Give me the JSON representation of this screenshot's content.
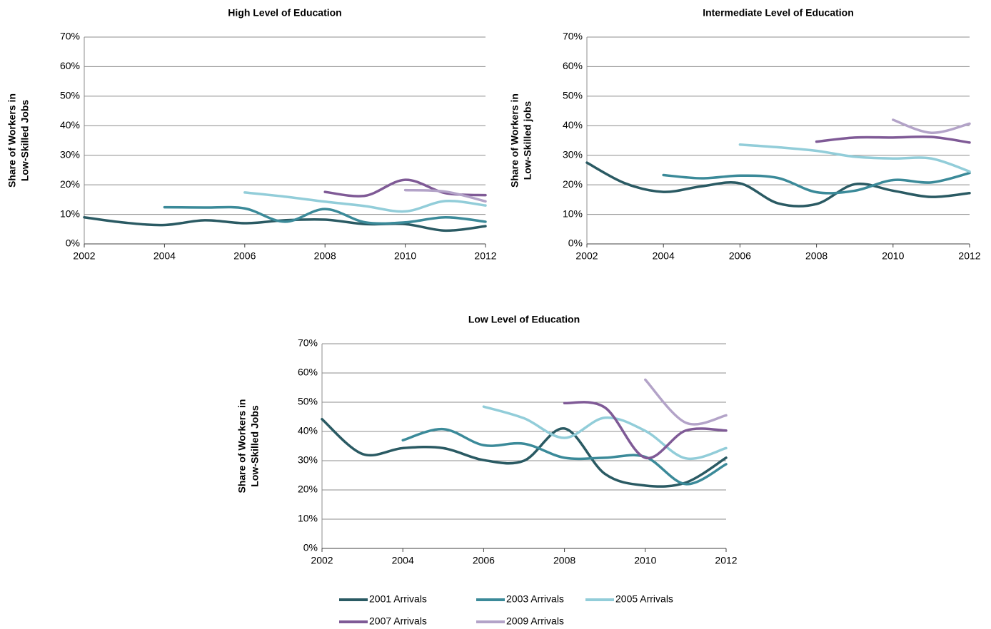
{
  "chart_data": [
    {
      "type": "line",
      "title": "High Level of Education",
      "ylabel": [
        "Share of Workers in",
        "Low-Skilled Jobs"
      ],
      "x": [
        2002,
        2003,
        2004,
        2005,
        2006,
        2007,
        2008,
        2009,
        2010,
        2011,
        2012
      ],
      "xlim": [
        2002,
        2012
      ],
      "xticks": [
        2002,
        2004,
        2006,
        2008,
        2010,
        2012
      ],
      "ylim": [
        0,
        70
      ],
      "yticks": [
        {
          "value": 0,
          "label": "0%"
        },
        {
          "value": 10,
          "label": "10%"
        },
        {
          "value": 20,
          "label": "20%"
        },
        {
          "value": 30,
          "label": "30%"
        },
        {
          "value": 40,
          "label": "40%"
        },
        {
          "value": 50,
          "label": "50%"
        },
        {
          "value": 60,
          "label": "60%"
        },
        {
          "value": 70,
          "label": "70%"
        }
      ],
      "grid": true,
      "series": [
        {
          "name": "2001 Arrivals",
          "color": "#2a5a63",
          "values": [
            9,
            7.2,
            6.4,
            8,
            7,
            8,
            8.2,
            6.7,
            6.7,
            4.5,
            6
          ]
        },
        {
          "name": "2003 Arrivals",
          "color": "#3b8a99",
          "values": [
            null,
            null,
            12.4,
            12.3,
            12,
            7.5,
            11.8,
            7.3,
            7.3,
            9,
            7.5
          ]
        },
        {
          "name": "2005 Arrivals",
          "color": "#92cdd9",
          "values": [
            null,
            null,
            null,
            null,
            17.4,
            16,
            14.3,
            12.8,
            11,
            14.5,
            13
          ]
        },
        {
          "name": "2007 Arrivals",
          "color": "#7f5a96",
          "values": [
            null,
            null,
            null,
            null,
            null,
            null,
            17.6,
            16.3,
            21.7,
            17.2,
            16.5
          ]
        },
        {
          "name": "2009 Arrivals",
          "color": "#b3a3c8",
          "values": [
            null,
            null,
            null,
            null,
            null,
            null,
            null,
            null,
            18.2,
            17.7,
            14.4
          ]
        }
      ]
    },
    {
      "type": "line",
      "title": "Intermediate Level of Education",
      "ylabel": [
        "Share of Workers in",
        "Low-Skilled jobs"
      ],
      "x": [
        2002,
        2003,
        2004,
        2005,
        2006,
        2007,
        2008,
        2009,
        2010,
        2011,
        2012
      ],
      "xlim": [
        2002,
        2012
      ],
      "xticks": [
        2002,
        2004,
        2006,
        2008,
        2010,
        2012
      ],
      "ylim": [
        0,
        70
      ],
      "yticks": [
        {
          "value": 0,
          "label": "0%"
        },
        {
          "value": 10,
          "label": "10%"
        },
        {
          "value": 20,
          "label": "20%"
        },
        {
          "value": 30,
          "label": "30%"
        },
        {
          "value": 40,
          "label": "40%"
        },
        {
          "value": 50,
          "label": "50%"
        },
        {
          "value": 60,
          "label": "60%"
        },
        {
          "value": 70,
          "label": "70%"
        }
      ],
      "grid": true,
      "series": [
        {
          "name": "2001 Arrivals",
          "color": "#2a5a63",
          "values": [
            27.5,
            20.5,
            17.6,
            19.5,
            20.5,
            13.7,
            13.5,
            20.2,
            18,
            15.9,
            17.2
          ]
        },
        {
          "name": "2003 Arrivals",
          "color": "#3b8a99",
          "values": [
            null,
            null,
            23.3,
            22.2,
            23.1,
            22.3,
            17.5,
            18,
            21.6,
            20.8,
            24
          ]
        },
        {
          "name": "2005 Arrivals",
          "color": "#92cdd9",
          "values": [
            null,
            null,
            null,
            null,
            33.6,
            32.7,
            31.5,
            29.5,
            28.9,
            28.9,
            24.5
          ]
        },
        {
          "name": "2007 Arrivals",
          "color": "#7f5a96",
          "values": [
            null,
            null,
            null,
            null,
            null,
            null,
            34.6,
            36,
            36,
            36.2,
            34.3
          ]
        },
        {
          "name": "2009 Arrivals",
          "color": "#b3a3c8",
          "values": [
            null,
            null,
            null,
            null,
            null,
            null,
            null,
            null,
            42,
            37.6,
            40.7
          ]
        }
      ]
    },
    {
      "type": "line",
      "title": "Low Level of Education",
      "ylabel": [
        "Share of Workers in",
        "Low-Skilled Jobs"
      ],
      "x": [
        2002,
        2003,
        2004,
        2005,
        2006,
        2007,
        2008,
        2009,
        2010,
        2011,
        2012
      ],
      "xlim": [
        2002,
        2012
      ],
      "xticks": [
        2002,
        2004,
        2006,
        2008,
        2010,
        2012
      ],
      "ylim": [
        0,
        70
      ],
      "yticks": [
        {
          "value": 0,
          "label": "0%"
        },
        {
          "value": 10,
          "label": "10%"
        },
        {
          "value": 20,
          "label": "20%"
        },
        {
          "value": 30,
          "label": "30%"
        },
        {
          "value": 40,
          "label": "40%"
        },
        {
          "value": 50,
          "label": "50%"
        },
        {
          "value": 60,
          "label": "60%"
        },
        {
          "value": 70,
          "label": "70%"
        }
      ],
      "grid": true,
      "legend": "bottom",
      "series": [
        {
          "name": "2001 Arrivals",
          "color": "#2a5a63",
          "values": [
            44.2,
            32.3,
            34.3,
            34.3,
            30.2,
            30,
            41,
            25.5,
            21.5,
            22.5,
            31
          ]
        },
        {
          "name": "2003 Arrivals",
          "color": "#3b8a99",
          "values": [
            null,
            null,
            37,
            40.8,
            35.3,
            35.8,
            31,
            31,
            31.3,
            22,
            28.8
          ]
        },
        {
          "name": "2005 Arrivals",
          "color": "#92cdd9",
          "values": [
            null,
            null,
            null,
            null,
            48.5,
            44.5,
            37.8,
            44.7,
            40.2,
            30.8,
            34.3
          ]
        },
        {
          "name": "2007 Arrivals",
          "color": "#7f5a96",
          "values": [
            null,
            null,
            null,
            null,
            null,
            null,
            49.7,
            48.2,
            31,
            40.3,
            40.3
          ]
        },
        {
          "name": "2009 Arrivals",
          "color": "#b3a3c8",
          "values": [
            null,
            null,
            null,
            null,
            null,
            null,
            null,
            null,
            57.7,
            43,
            45.5
          ]
        }
      ]
    }
  ]
}
